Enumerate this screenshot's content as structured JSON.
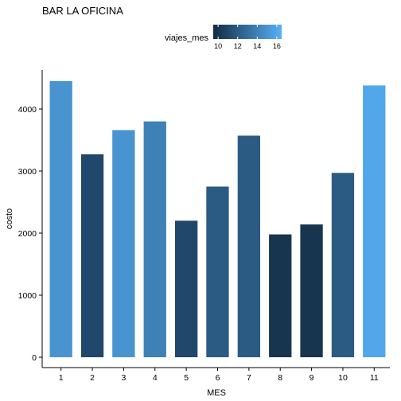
{
  "chart_data": {
    "type": "bar",
    "title": "BAR LA OFICINA",
    "xlabel": "MES",
    "ylabel": "costo",
    "categories": [
      "1",
      "2",
      "3",
      "4",
      "5",
      "6",
      "7",
      "8",
      "9",
      "10",
      "11"
    ],
    "values": [
      4450,
      3270,
      3660,
      3800,
      2200,
      2750,
      3570,
      1980,
      2140,
      2970,
      4380
    ],
    "color_values": [
      15,
      11,
      15,
      14,
      11,
      12,
      12,
      10,
      10,
      12,
      16
    ],
    "ylim": [
      0,
      4500
    ],
    "yticks": [
      0,
      1000,
      2000,
      3000,
      4000
    ],
    "ytick_labels": [
      "0",
      "1000",
      "2000",
      "3000",
      "4000"
    ],
    "legend": {
      "title": "viajes_mes",
      "placement": "top",
      "range": [
        9.5,
        16.5
      ],
      "ticks": [
        10,
        12,
        14,
        16
      ],
      "tick_labels": [
        "10",
        "12",
        "14",
        "16"
      ],
      "low_color": "#132B43",
      "high_color": "#56B1F7"
    },
    "grid": false
  }
}
